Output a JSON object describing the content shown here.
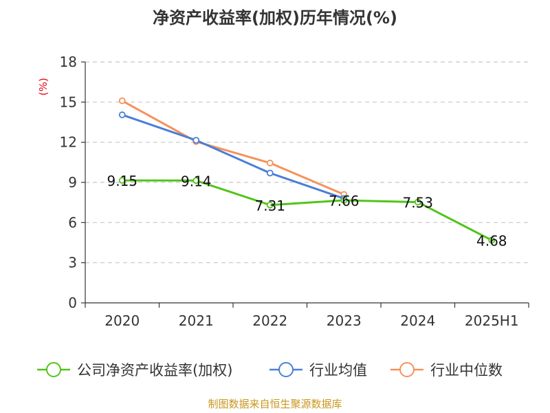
{
  "chart_data": {
    "type": "line",
    "title": "净资产收益率(加权)历年情况(%)",
    "ylabel": "(%)",
    "xlabel": "",
    "categories": [
      "2020",
      "2021",
      "2022",
      "2023",
      "2024",
      "2025H1"
    ],
    "yticks": [
      0,
      3,
      6,
      9,
      12,
      15,
      18
    ],
    "ylim": [
      0,
      18
    ],
    "grid": true,
    "legend_position": "bottom",
    "series": [
      {
        "name": "公司净资产收益率(加权)",
        "color": "#52c41a",
        "values": [
          9.15,
          9.14,
          7.31,
          7.66,
          7.53,
          4.68
        ],
        "labels": [
          "9.15",
          "9.14",
          "7.31",
          "7.66",
          "7.53",
          "4.68"
        ]
      },
      {
        "name": "行业均值",
        "color": "#4a7fd9",
        "values": [
          14.05,
          12.15,
          9.7,
          7.8,
          null,
          null
        ]
      },
      {
        "name": "行业中位数",
        "color": "#f5925b",
        "values": [
          15.1,
          12.05,
          10.45,
          8.1,
          null,
          null
        ]
      }
    ]
  },
  "source_text": "制图数据来自恒生聚源数据库"
}
